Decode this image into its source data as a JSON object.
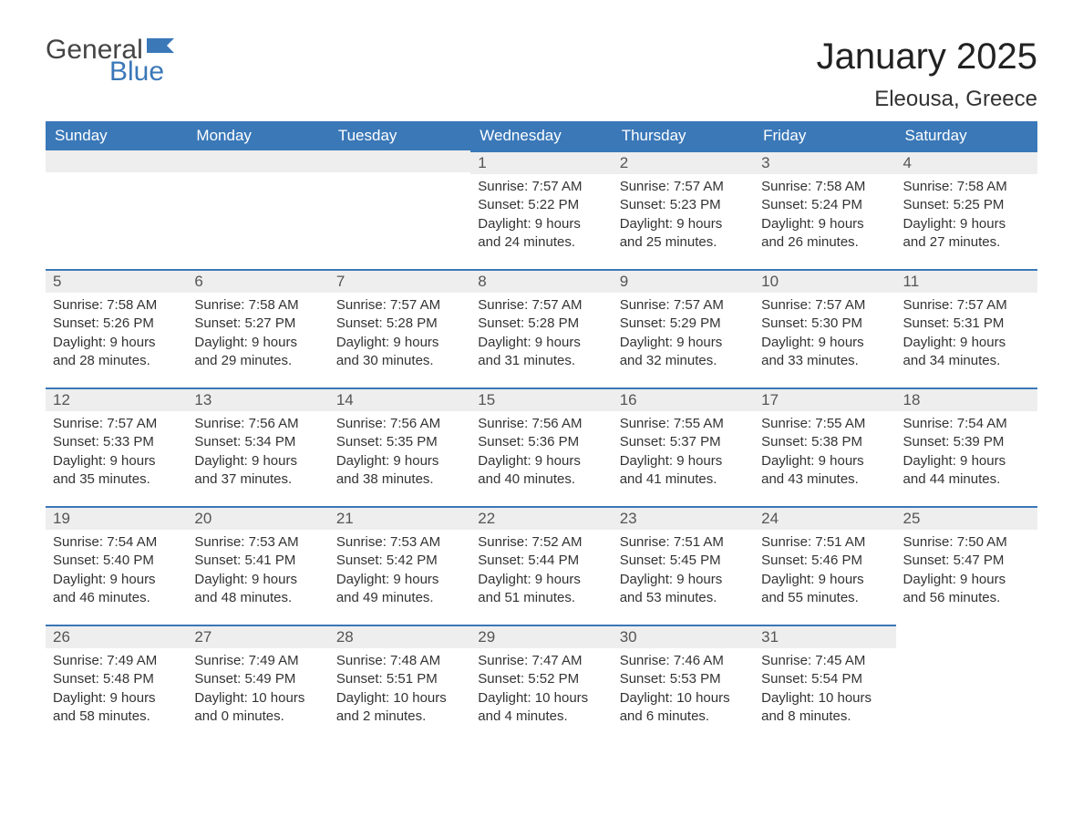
{
  "logo": {
    "word1": "General",
    "word2": "Blue",
    "flag_color": "#3a78b8"
  },
  "title": "January 2025",
  "location": "Eleousa, Greece",
  "colors": {
    "header_bg": "#3a78b8",
    "header_text": "#ffffff",
    "daynum_bg": "#eeeeee",
    "row_border": "#3a78b8",
    "text": "#333333",
    "background": "#ffffff"
  },
  "fonts": {
    "title_size_pt": 30,
    "location_size_pt": 18,
    "header_size_pt": 13,
    "body_size_pt": 11
  },
  "weekdays": [
    "Sunday",
    "Monday",
    "Tuesday",
    "Wednesday",
    "Thursday",
    "Friday",
    "Saturday"
  ],
  "labels": {
    "sunrise": "Sunrise",
    "sunset": "Sunset",
    "daylight": "Daylight"
  },
  "weeks": [
    [
      null,
      null,
      null,
      {
        "d": "1",
        "sunrise": "7:57 AM",
        "sunset": "5:22 PM",
        "daylight": "9 hours and 24 minutes."
      },
      {
        "d": "2",
        "sunrise": "7:57 AM",
        "sunset": "5:23 PM",
        "daylight": "9 hours and 25 minutes."
      },
      {
        "d": "3",
        "sunrise": "7:58 AM",
        "sunset": "5:24 PM",
        "daylight": "9 hours and 26 minutes."
      },
      {
        "d": "4",
        "sunrise": "7:58 AM",
        "sunset": "5:25 PM",
        "daylight": "9 hours and 27 minutes."
      }
    ],
    [
      {
        "d": "5",
        "sunrise": "7:58 AM",
        "sunset": "5:26 PM",
        "daylight": "9 hours and 28 minutes."
      },
      {
        "d": "6",
        "sunrise": "7:58 AM",
        "sunset": "5:27 PM",
        "daylight": "9 hours and 29 minutes."
      },
      {
        "d": "7",
        "sunrise": "7:57 AM",
        "sunset": "5:28 PM",
        "daylight": "9 hours and 30 minutes."
      },
      {
        "d": "8",
        "sunrise": "7:57 AM",
        "sunset": "5:28 PM",
        "daylight": "9 hours and 31 minutes."
      },
      {
        "d": "9",
        "sunrise": "7:57 AM",
        "sunset": "5:29 PM",
        "daylight": "9 hours and 32 minutes."
      },
      {
        "d": "10",
        "sunrise": "7:57 AM",
        "sunset": "5:30 PM",
        "daylight": "9 hours and 33 minutes."
      },
      {
        "d": "11",
        "sunrise": "7:57 AM",
        "sunset": "5:31 PM",
        "daylight": "9 hours and 34 minutes."
      }
    ],
    [
      {
        "d": "12",
        "sunrise": "7:57 AM",
        "sunset": "5:33 PM",
        "daylight": "9 hours and 35 minutes."
      },
      {
        "d": "13",
        "sunrise": "7:56 AM",
        "sunset": "5:34 PM",
        "daylight": "9 hours and 37 minutes."
      },
      {
        "d": "14",
        "sunrise": "7:56 AM",
        "sunset": "5:35 PM",
        "daylight": "9 hours and 38 minutes."
      },
      {
        "d": "15",
        "sunrise": "7:56 AM",
        "sunset": "5:36 PM",
        "daylight": "9 hours and 40 minutes."
      },
      {
        "d": "16",
        "sunrise": "7:55 AM",
        "sunset": "5:37 PM",
        "daylight": "9 hours and 41 minutes."
      },
      {
        "d": "17",
        "sunrise": "7:55 AM",
        "sunset": "5:38 PM",
        "daylight": "9 hours and 43 minutes."
      },
      {
        "d": "18",
        "sunrise": "7:54 AM",
        "sunset": "5:39 PM",
        "daylight": "9 hours and 44 minutes."
      }
    ],
    [
      {
        "d": "19",
        "sunrise": "7:54 AM",
        "sunset": "5:40 PM",
        "daylight": "9 hours and 46 minutes."
      },
      {
        "d": "20",
        "sunrise": "7:53 AM",
        "sunset": "5:41 PM",
        "daylight": "9 hours and 48 minutes."
      },
      {
        "d": "21",
        "sunrise": "7:53 AM",
        "sunset": "5:42 PM",
        "daylight": "9 hours and 49 minutes."
      },
      {
        "d": "22",
        "sunrise": "7:52 AM",
        "sunset": "5:44 PM",
        "daylight": "9 hours and 51 minutes."
      },
      {
        "d": "23",
        "sunrise": "7:51 AM",
        "sunset": "5:45 PM",
        "daylight": "9 hours and 53 minutes."
      },
      {
        "d": "24",
        "sunrise": "7:51 AM",
        "sunset": "5:46 PM",
        "daylight": "9 hours and 55 minutes."
      },
      {
        "d": "25",
        "sunrise": "7:50 AM",
        "sunset": "5:47 PM",
        "daylight": "9 hours and 56 minutes."
      }
    ],
    [
      {
        "d": "26",
        "sunrise": "7:49 AM",
        "sunset": "5:48 PM",
        "daylight": "9 hours and 58 minutes."
      },
      {
        "d": "27",
        "sunrise": "7:49 AM",
        "sunset": "5:49 PM",
        "daylight": "10 hours and 0 minutes."
      },
      {
        "d": "28",
        "sunrise": "7:48 AM",
        "sunset": "5:51 PM",
        "daylight": "10 hours and 2 minutes."
      },
      {
        "d": "29",
        "sunrise": "7:47 AM",
        "sunset": "5:52 PM",
        "daylight": "10 hours and 4 minutes."
      },
      {
        "d": "30",
        "sunrise": "7:46 AM",
        "sunset": "5:53 PM",
        "daylight": "10 hours and 6 minutes."
      },
      {
        "d": "31",
        "sunrise": "7:45 AM",
        "sunset": "5:54 PM",
        "daylight": "10 hours and 8 minutes."
      },
      null
    ]
  ]
}
